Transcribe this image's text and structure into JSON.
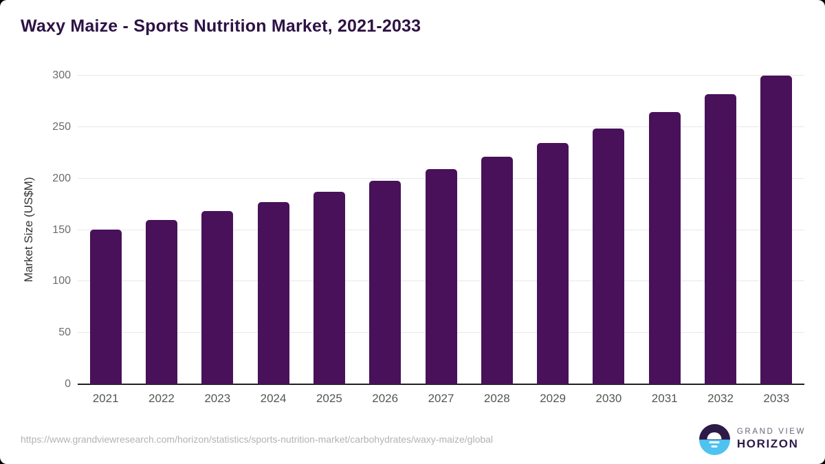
{
  "header": {
    "title": "Waxy Maize - Sports Nutrition Market, 2021-2033"
  },
  "chart_data": {
    "type": "bar",
    "title": "Waxy Maize - Sports Nutrition Market, 2021-2033",
    "categories": [
      "2021",
      "2022",
      "2023",
      "2024",
      "2025",
      "2026",
      "2027",
      "2028",
      "2029",
      "2030",
      "2031",
      "2032",
      "2033"
    ],
    "values": [
      150.5,
      159.8,
      168.5,
      177.2,
      187.2,
      197.8,
      209.0,
      221.2,
      234.6,
      248.6,
      264.8,
      281.9,
      299.8
    ],
    "xlabel": "",
    "ylabel": "Market Size (US$M)",
    "ylim": [
      0,
      300
    ],
    "yticks": [
      0,
      50,
      100,
      150,
      200,
      250,
      300
    ],
    "grid": true,
    "legend": "none",
    "bar_unit": "US$M"
  },
  "footer": {
    "source_url": "https://www.grandviewresearch.com/horizon/statistics/sports-nutrition-market/carbohydrates/waxy-maize/global",
    "logo": {
      "brand_line1": "GRAND VIEW",
      "brand_line2": "HORIZON"
    }
  },
  "colors": {
    "bar": "#481159",
    "title": "#2d1245",
    "grid": "#e8e8e8",
    "axis": "#1f1f1f",
    "tick_label": "#6b6b6b",
    "x_label": "#555555",
    "y_axis_title": "#333333",
    "source_url": "#b3b3b3",
    "logo_purple": "#2e1a47",
    "logo_blue": "#4ec3f0",
    "card_background": "#ffffff",
    "page_background": "#000000"
  }
}
